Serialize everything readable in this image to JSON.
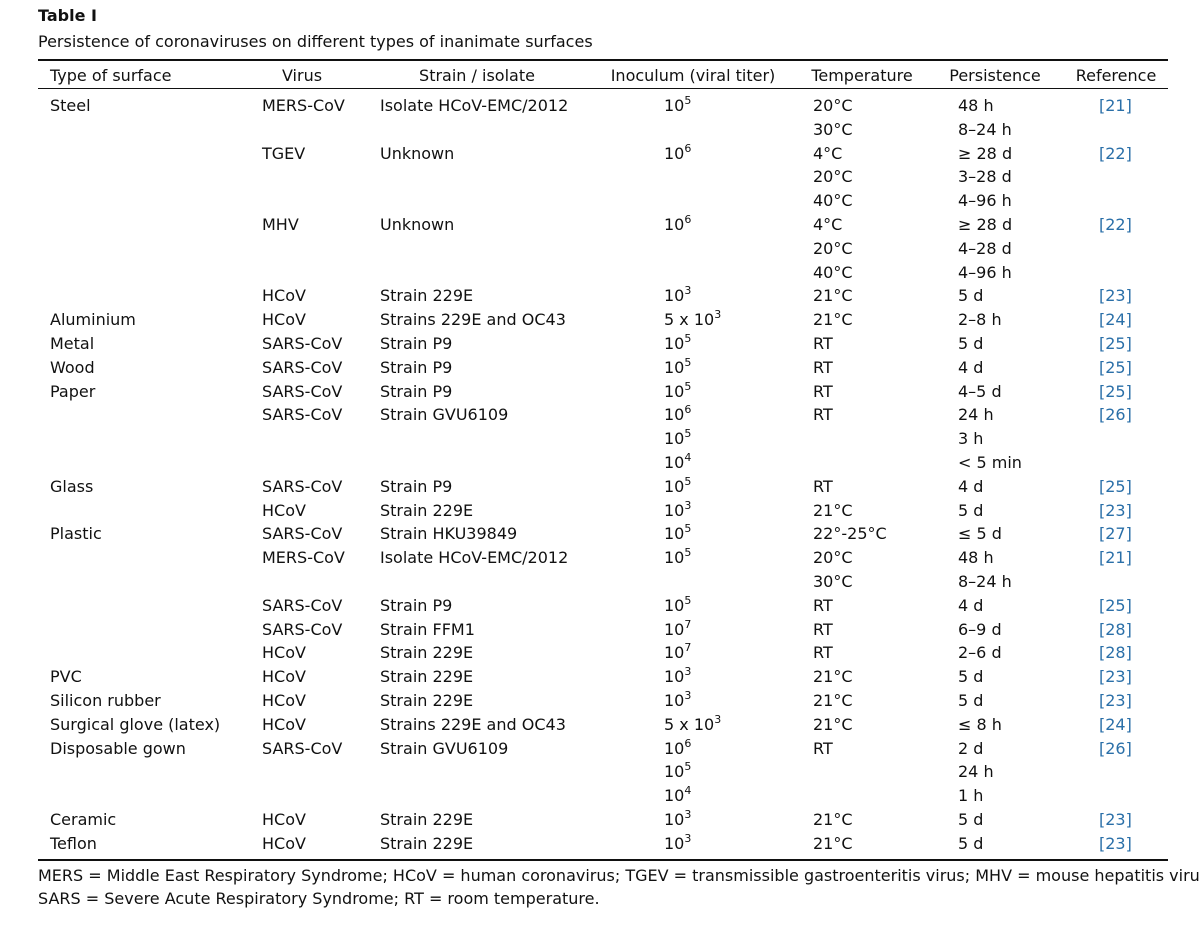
{
  "header": {
    "title": "Table I",
    "caption": "Persistence of coronaviruses on different types of inanimate surfaces"
  },
  "table": {
    "columns": [
      "Type of surface",
      "Virus",
      "Strain / isolate",
      "Inoculum (viral titer)",
      "Temperature",
      "Persistence",
      "Reference"
    ],
    "rows": [
      [
        "Steel",
        "MERS-CoV",
        "Isolate HCoV-EMC/2012",
        {
          "base": "10",
          "exp": "5"
        },
        "20°C",
        "48 h",
        "[21]"
      ],
      [
        null,
        null,
        null,
        null,
        "30°C",
        "8–24 h",
        null
      ],
      [
        null,
        "TGEV",
        "Unknown",
        {
          "base": "10",
          "exp": "6"
        },
        "4°C",
        "≥ 28 d",
        "[22]"
      ],
      [
        null,
        null,
        null,
        null,
        "20°C",
        "3–28 d",
        null
      ],
      [
        null,
        null,
        null,
        null,
        "40°C",
        "4–96 h",
        null
      ],
      [
        null,
        "MHV",
        "Unknown",
        {
          "base": "10",
          "exp": "6"
        },
        "4°C",
        "≥ 28 d",
        "[22]"
      ],
      [
        null,
        null,
        null,
        null,
        "20°C",
        "4–28 d",
        null
      ],
      [
        null,
        null,
        null,
        null,
        "40°C",
        "4–96 h",
        null
      ],
      [
        null,
        "HCoV",
        "Strain 229E",
        {
          "base": "10",
          "exp": "3"
        },
        "21°C",
        "5 d",
        "[23]"
      ],
      [
        "Aluminium",
        "HCoV",
        "Strains 229E and OC43",
        {
          "base": "5 x 10",
          "exp": "3"
        },
        "21°C",
        "2–8 h",
        "[24]"
      ],
      [
        "Metal",
        "SARS-CoV",
        "Strain P9",
        {
          "base": "10",
          "exp": "5"
        },
        "RT",
        "5 d",
        "[25]"
      ],
      [
        "Wood",
        "SARS-CoV",
        "Strain P9",
        {
          "base": "10",
          "exp": "5"
        },
        "RT",
        "4 d",
        "[25]"
      ],
      [
        "Paper",
        "SARS-CoV",
        "Strain P9",
        {
          "base": "10",
          "exp": "5"
        },
        "RT",
        "4–5 d",
        "[25]"
      ],
      [
        null,
        "SARS-CoV",
        "Strain GVU6109",
        {
          "base": "10",
          "exp": "6"
        },
        "RT",
        "24 h",
        "[26]"
      ],
      [
        null,
        null,
        null,
        {
          "base": "10",
          "exp": "5"
        },
        null,
        "3 h",
        null
      ],
      [
        null,
        null,
        null,
        {
          "base": "10",
          "exp": "4"
        },
        null,
        "< 5 min",
        null
      ],
      [
        "Glass",
        "SARS-CoV",
        "Strain P9",
        {
          "base": "10",
          "exp": "5"
        },
        "RT",
        "4 d",
        "[25]"
      ],
      [
        null,
        "HCoV",
        "Strain 229E",
        {
          "base": "10",
          "exp": "3"
        },
        "21°C",
        "5 d",
        "[23]"
      ],
      [
        "Plastic",
        "SARS-CoV",
        "Strain HKU39849",
        {
          "base": "10",
          "exp": "5"
        },
        "22°-25°C",
        "≤ 5 d",
        "[27]"
      ],
      [
        null,
        "MERS-CoV",
        "Isolate HCoV-EMC/2012",
        {
          "base": "10",
          "exp": "5"
        },
        "20°C",
        "48 h",
        "[21]"
      ],
      [
        null,
        null,
        null,
        null,
        "30°C",
        "8–24 h",
        null
      ],
      [
        null,
        "SARS-CoV",
        "Strain P9",
        {
          "base": "10",
          "exp": "5"
        },
        "RT",
        "4 d",
        "[25]"
      ],
      [
        null,
        "SARS-CoV",
        "Strain FFM1",
        {
          "base": "10",
          "exp": "7"
        },
        "RT",
        "6–9 d",
        "[28]"
      ],
      [
        null,
        "HCoV",
        "Strain 229E",
        {
          "base": "10",
          "exp": "7"
        },
        "RT",
        "2–6 d",
        "[28]"
      ],
      [
        "PVC",
        "HCoV",
        "Strain 229E",
        {
          "base": "10",
          "exp": "3"
        },
        "21°C",
        "5 d",
        "[23]"
      ],
      [
        "Silicon rubber",
        "HCoV",
        "Strain 229E",
        {
          "base": "10",
          "exp": "3"
        },
        "21°C",
        "5 d",
        "[23]"
      ],
      [
        "Surgical glove (latex)",
        "HCoV",
        "Strains 229E and OC43",
        {
          "base": "5 x 10",
          "exp": "3"
        },
        "21°C",
        "≤ 8 h",
        "[24]"
      ],
      [
        "Disposable gown",
        "SARS-CoV",
        "Strain GVU6109",
        {
          "base": "10",
          "exp": "6"
        },
        "RT",
        "2 d",
        "[26]"
      ],
      [
        null,
        null,
        null,
        {
          "base": "10",
          "exp": "5"
        },
        null,
        "24 h",
        null
      ],
      [
        null,
        null,
        null,
        {
          "base": "10",
          "exp": "4"
        },
        null,
        "1 h",
        null
      ],
      [
        "Ceramic",
        "HCoV",
        "Strain 229E",
        {
          "base": "10",
          "exp": "3"
        },
        "21°C",
        "5 d",
        "[23]"
      ],
      [
        "Teflon",
        "HCoV",
        "Strain 229E",
        {
          "base": "10",
          "exp": "3"
        },
        "21°C",
        "5 d",
        "[23]"
      ]
    ]
  },
  "footnote": [
    "MERS = Middle East Respiratory Syndrome; HCoV = human coronavirus; TGEV = transmissible gastroenteritis virus; MHV = mouse hepatitis virus;",
    "SARS = Severe Acute Respiratory Syndrome; RT = room temperature."
  ]
}
